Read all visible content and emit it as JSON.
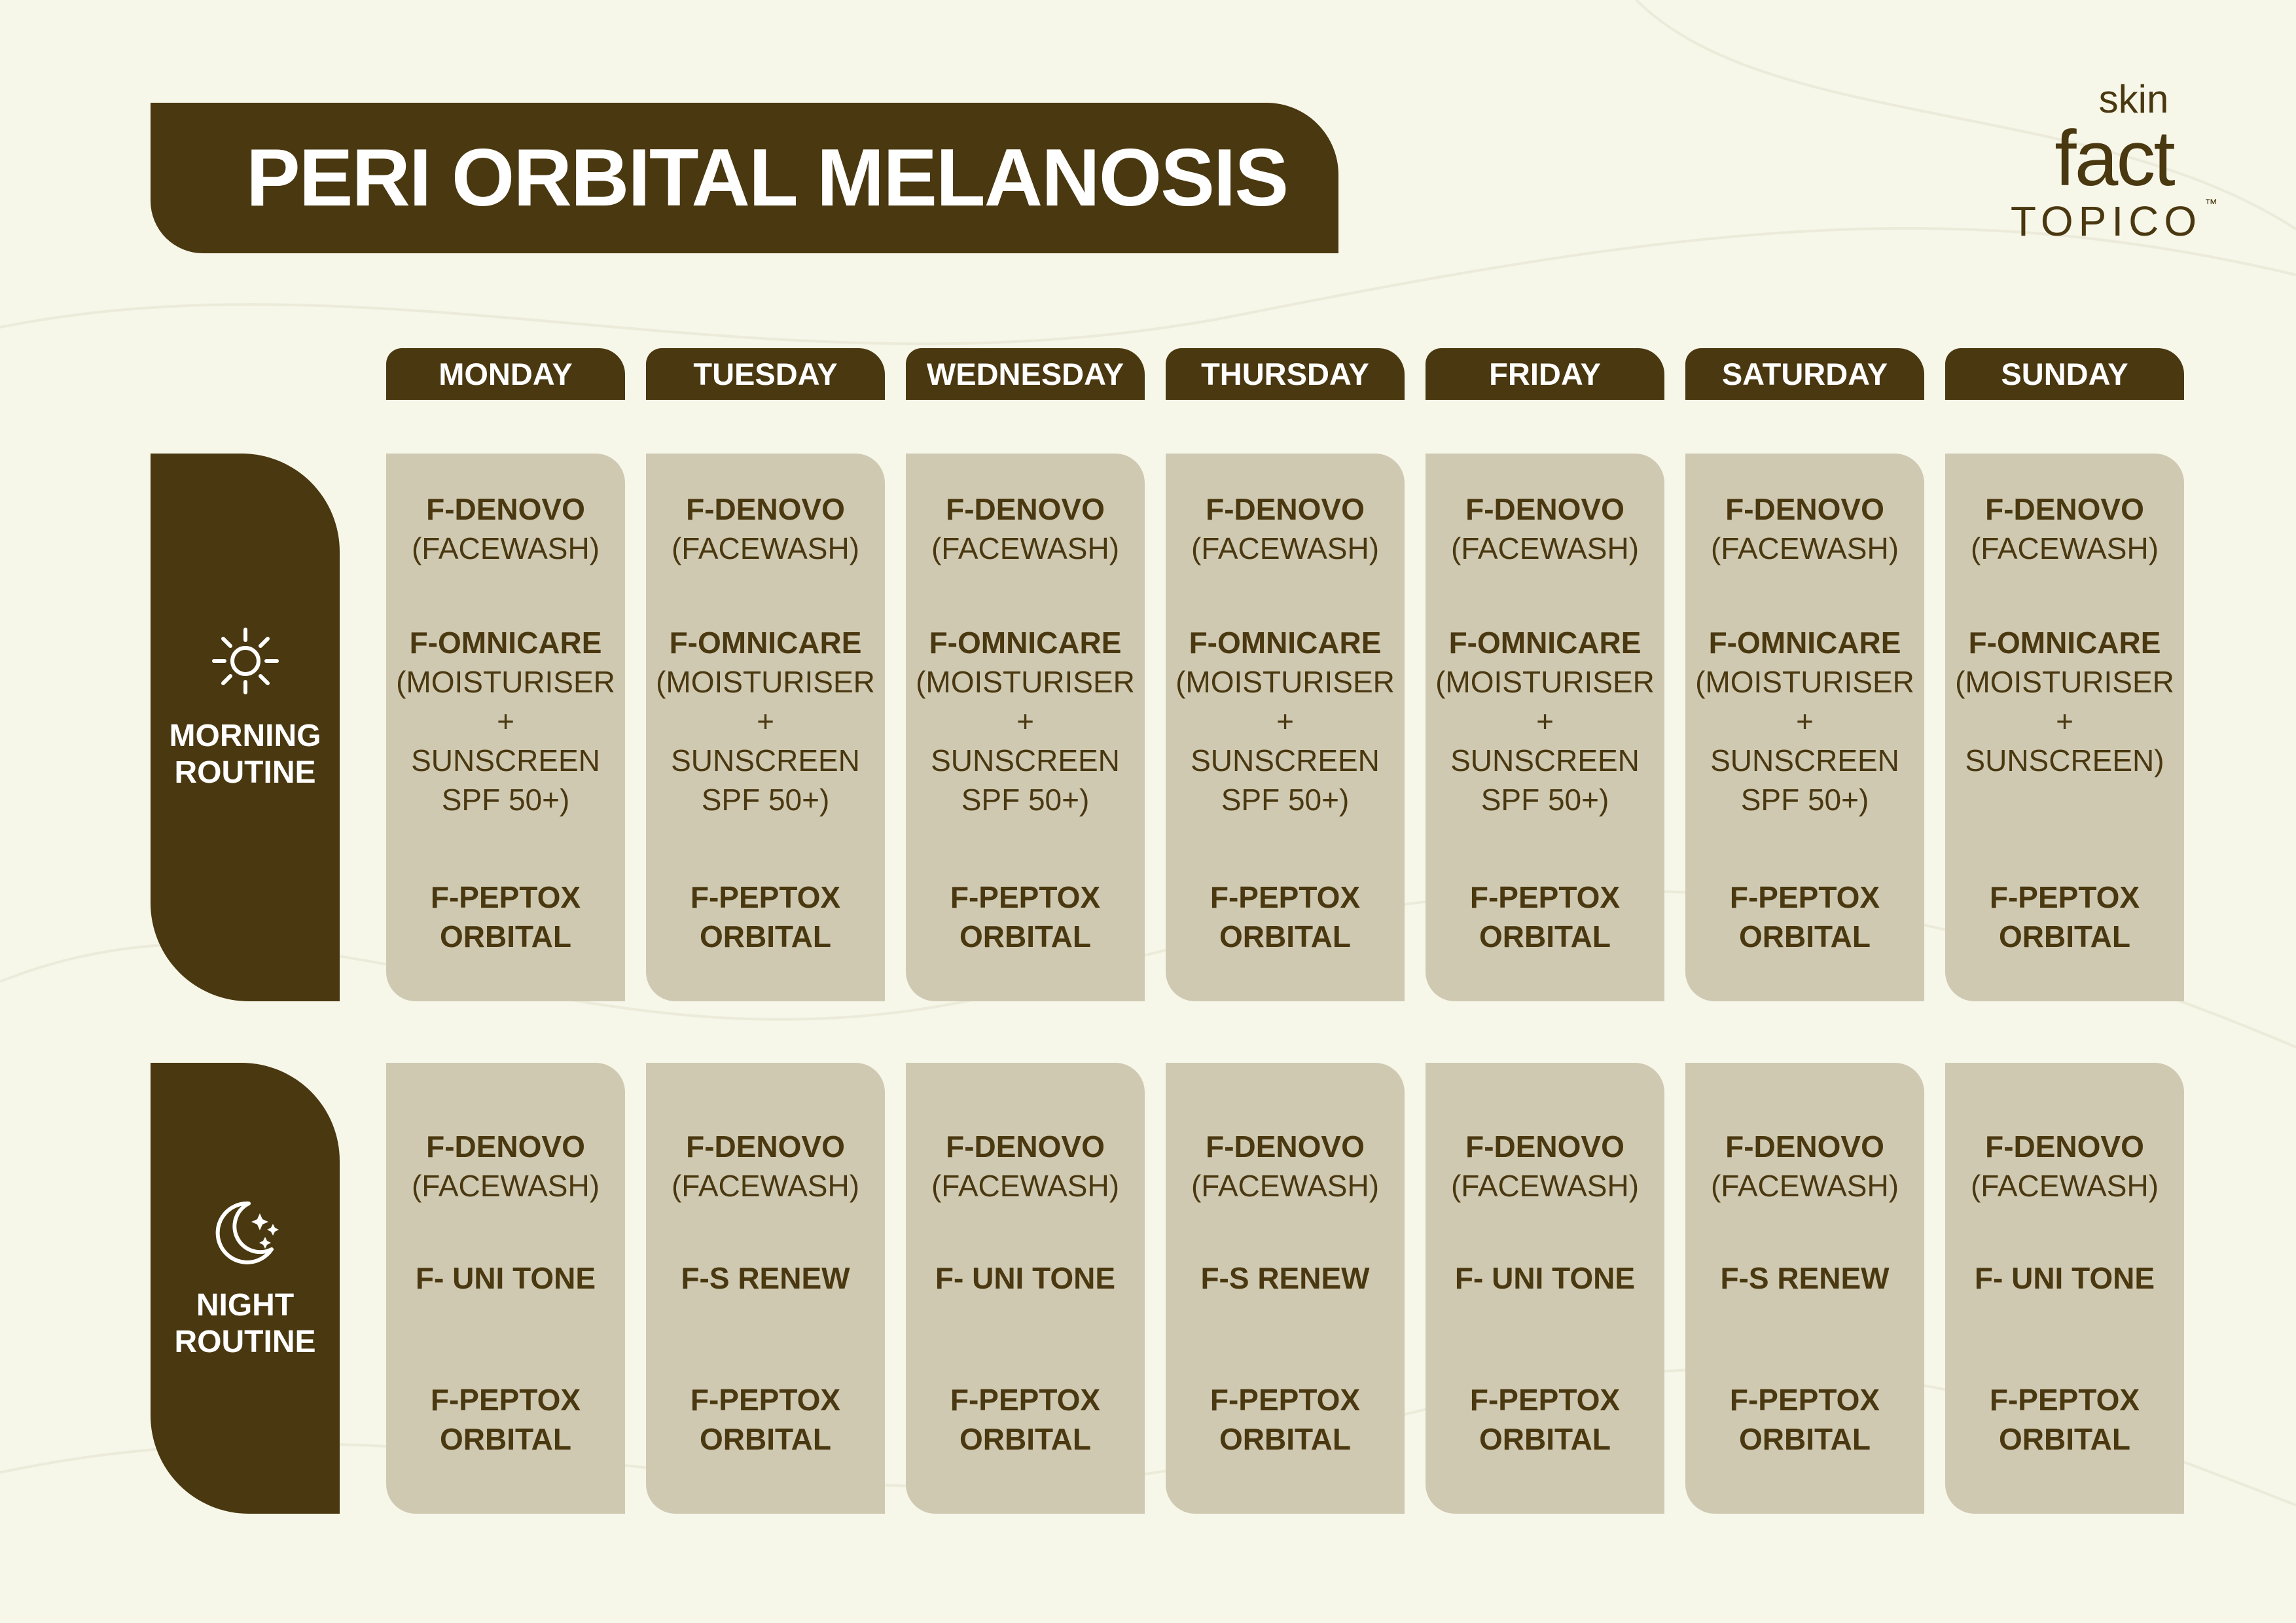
{
  "title": "PERI ORBITAL MELANOSIS",
  "logo": {
    "top": "skin",
    "main": "fact",
    "brand": "TOPICO",
    "tm": "™"
  },
  "colors": {
    "brand": "#4a3810",
    "cell": "#cfc9b2",
    "background": "#f6f6e9"
  },
  "days": [
    "MONDAY",
    "TUESDAY",
    "WEDNESDAY",
    "THURSDAY",
    "FRIDAY",
    "SATURDAY",
    "SUNDAY"
  ],
  "morning": {
    "icon": "sun-icon",
    "label": [
      "MORNING",
      "ROUTINE"
    ],
    "cells": [
      [
        {
          "b": [
            "F-DENOVO"
          ],
          "r": [
            "(FACEWASH)"
          ]
        },
        {
          "b": [
            "F-OMNICARE"
          ],
          "r": [
            "(MOISTURISER",
            "+",
            "SUNSCREEN",
            "SPF 50+)"
          ]
        },
        {
          "b": [
            "F-PEPTOX",
            "ORBITAL"
          ],
          "r": []
        }
      ],
      [
        {
          "b": [
            "F-DENOVO"
          ],
          "r": [
            "(FACEWASH)"
          ]
        },
        {
          "b": [
            "F-OMNICARE"
          ],
          "r": [
            "(MOISTURISER",
            "+",
            "SUNSCREEN",
            "SPF 50+)"
          ]
        },
        {
          "b": [
            "F-PEPTOX",
            "ORBITAL"
          ],
          "r": []
        }
      ],
      [
        {
          "b": [
            "F-DENOVO"
          ],
          "r": [
            "(FACEWASH)"
          ]
        },
        {
          "b": [
            "F-OMNICARE"
          ],
          "r": [
            "(MOISTURISER",
            "+",
            "SUNSCREEN",
            "SPF 50+)"
          ]
        },
        {
          "b": [
            "F-PEPTOX",
            "ORBITAL"
          ],
          "r": []
        }
      ],
      [
        {
          "b": [
            "F-DENOVO"
          ],
          "r": [
            "(FACEWASH)"
          ]
        },
        {
          "b": [
            "F-OMNICARE"
          ],
          "r": [
            "(MOISTURISER",
            "+",
            "SUNSCREEN",
            "SPF 50+)"
          ]
        },
        {
          "b": [
            "F-PEPTOX",
            "ORBITAL"
          ],
          "r": []
        }
      ],
      [
        {
          "b": [
            "F-DENOVO"
          ],
          "r": [
            "(FACEWASH)"
          ]
        },
        {
          "b": [
            "F-OMNICARE"
          ],
          "r": [
            "(MOISTURISER",
            "+",
            "SUNSCREEN",
            "SPF 50+)"
          ]
        },
        {
          "b": [
            "F-PEPTOX",
            "ORBITAL"
          ],
          "r": []
        }
      ],
      [
        {
          "b": [
            "F-DENOVO"
          ],
          "r": [
            "(FACEWASH)"
          ]
        },
        {
          "b": [
            "F-OMNICARE"
          ],
          "r": [
            "(MOISTURISER",
            "+",
            "SUNSCREEN",
            "SPF 50+)"
          ]
        },
        {
          "b": [
            "F-PEPTOX",
            "ORBITAL"
          ],
          "r": []
        }
      ],
      [
        {
          "b": [
            "F-DENOVO"
          ],
          "r": [
            "(FACEWASH)"
          ]
        },
        {
          "b": [
            "F-OMNICARE"
          ],
          "r": [
            "(MOISTURISER",
            "+",
            "SUNSCREEN)"
          ]
        },
        {
          "b": [
            "F-PEPTOX",
            "ORBITAL"
          ],
          "r": []
        }
      ]
    ]
  },
  "night": {
    "icon": "moon-stars-icon",
    "label": [
      "NIGHT",
      "ROUTINE"
    ],
    "cells": [
      [
        {
          "b": [
            "F-DENOVO"
          ],
          "r": [
            "(FACEWASH)"
          ]
        },
        {
          "b": [
            "F- UNI TONE"
          ],
          "r": []
        },
        {
          "b": [
            "F-PEPTOX",
            "ORBITAL"
          ],
          "r": []
        }
      ],
      [
        {
          "b": [
            "F-DENOVO"
          ],
          "r": [
            "(FACEWASH)"
          ]
        },
        {
          "b": [
            "F-S RENEW"
          ],
          "r": []
        },
        {
          "b": [
            "F-PEPTOX",
            "ORBITAL"
          ],
          "r": []
        }
      ],
      [
        {
          "b": [
            "F-DENOVO"
          ],
          "r": [
            "(FACEWASH)"
          ]
        },
        {
          "b": [
            "F- UNI TONE"
          ],
          "r": []
        },
        {
          "b": [
            "F-PEPTOX",
            "ORBITAL"
          ],
          "r": []
        }
      ],
      [
        {
          "b": [
            "F-DENOVO"
          ],
          "r": [
            "(FACEWASH)"
          ]
        },
        {
          "b": [
            "F-S RENEW"
          ],
          "r": []
        },
        {
          "b": [
            "F-PEPTOX",
            "ORBITAL"
          ],
          "r": []
        }
      ],
      [
        {
          "b": [
            "F-DENOVO"
          ],
          "r": [
            "(FACEWASH)"
          ]
        },
        {
          "b": [
            "F- UNI TONE"
          ],
          "r": []
        },
        {
          "b": [
            "F-PEPTOX",
            "ORBITAL"
          ],
          "r": []
        }
      ],
      [
        {
          "b": [
            "F-DENOVO"
          ],
          "r": [
            "(FACEWASH)"
          ]
        },
        {
          "b": [
            "F-S RENEW"
          ],
          "r": []
        },
        {
          "b": [
            "F-PEPTOX",
            "ORBITAL"
          ],
          "r": []
        }
      ],
      [
        {
          "b": [
            "F-DENOVO"
          ],
          "r": [
            "(FACEWASH)"
          ]
        },
        {
          "b": [
            "F- UNI TONE"
          ],
          "r": []
        },
        {
          "b": [
            "F-PEPTOX",
            "ORBITAL"
          ],
          "r": []
        }
      ]
    ]
  }
}
